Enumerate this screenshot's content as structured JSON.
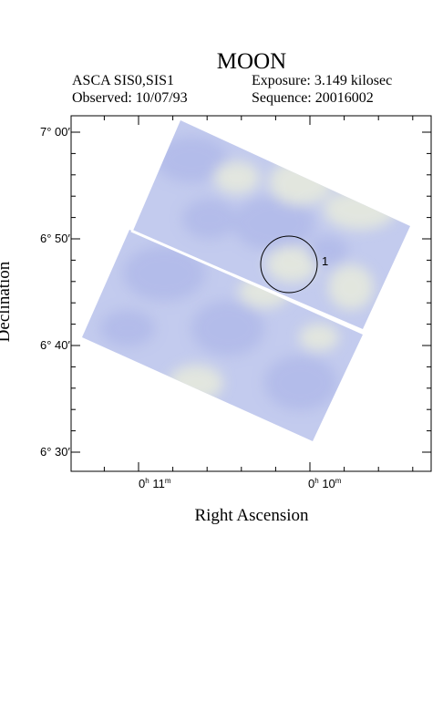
{
  "header": {
    "title": "MOON",
    "instrument": "ASCA SIS0,SIS1",
    "observed": "Observed: 10/07/93",
    "exposure": "Exposure: 3.149 kilosec",
    "sequence": "Sequence: 20016002"
  },
  "axes": {
    "x_label": "Right Ascension",
    "y_label": "Declination",
    "x_ticks": [
      {
        "h": "0",
        "m": "11"
      },
      {
        "h": "0",
        "m": "10"
      }
    ],
    "y_ticks": [
      "6° 30′",
      "6° 40′",
      "6° 50′",
      "7° 00′"
    ]
  },
  "image": {
    "fill_color": "#c3cbee",
    "tint_blue": "#aeb7e8",
    "tint_yellow": "#ecefd9",
    "frame_color": "#000000"
  },
  "annotation": {
    "source_label": "1"
  }
}
